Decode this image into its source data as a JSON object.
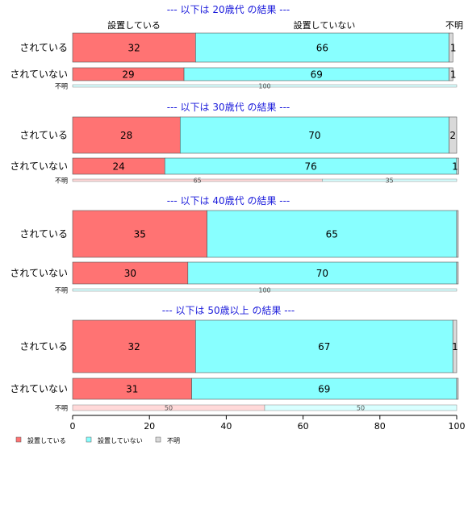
{
  "chart_data": {
    "type": "bar",
    "orientation": "horizontal-stacked",
    "xlim": [
      0,
      100
    ],
    "xticks": [
      "0",
      "20",
      "40",
      "60",
      "80",
      "100"
    ],
    "category_headers": [
      "設置している",
      "設置していない",
      "不明"
    ],
    "colors": {
      "設置している": "#ff7373",
      "設置していない": "#88ffff",
      "不明": "#d9d9d9"
    },
    "legend": {
      "position": "bottom-left",
      "entries": [
        "設置している",
        "設置していない",
        "不明"
      ]
    },
    "panels": [
      {
        "title": "--- 以下は 20歳代 の結果 ---",
        "rows": [
          {
            "label": "されている",
            "values": [
              32,
              66,
              1
            ],
            "labels": [
              "32",
              "66",
              "1"
            ]
          },
          {
            "label": "されていない",
            "values": [
              29,
              69,
              1
            ],
            "labels": [
              "29",
              "69",
              "1"
            ]
          },
          {
            "label": "不明",
            "values": [
              0,
              100,
              0
            ],
            "labels": [
              "",
              "100",
              ""
            ]
          }
        ]
      },
      {
        "title": "--- 以下は 30歳代 の結果 ---",
        "rows": [
          {
            "label": "されている",
            "values": [
              28,
              70,
              2
            ],
            "labels": [
              "28",
              "70",
              "2"
            ]
          },
          {
            "label": "されていない",
            "values": [
              24,
              76,
              0.5
            ],
            "labels": [
              "24",
              "76",
              "1"
            ]
          },
          {
            "label": "不明",
            "values": [
              65,
              35,
              0
            ],
            "labels": [
              "65",
              "35",
              ""
            ]
          }
        ]
      },
      {
        "title": "--- 以下は 40歳代 の結果 ---",
        "rows": [
          {
            "label": "されている",
            "values": [
              35,
              65,
              0.4
            ],
            "labels": [
              "35",
              "65",
              ""
            ]
          },
          {
            "label": "されていない",
            "values": [
              30,
              70,
              0.4
            ],
            "labels": [
              "30",
              "70",
              ""
            ]
          },
          {
            "label": "不明",
            "values": [
              0,
              100,
              0
            ],
            "labels": [
              "",
              "100",
              ""
            ]
          }
        ]
      },
      {
        "title": "--- 以下は 50歳以上 の結果 ---",
        "rows": [
          {
            "label": "されている",
            "values": [
              32,
              67,
              1
            ],
            "labels": [
              "32",
              "67",
              "1"
            ]
          },
          {
            "label": "されていない",
            "values": [
              31,
              69,
              0.4
            ],
            "labels": [
              "31",
              "69",
              ""
            ]
          },
          {
            "label": "不明",
            "values": [
              50,
              50,
              0
            ],
            "labels": [
              "50",
              "50",
              ""
            ]
          }
        ]
      }
    ]
  }
}
